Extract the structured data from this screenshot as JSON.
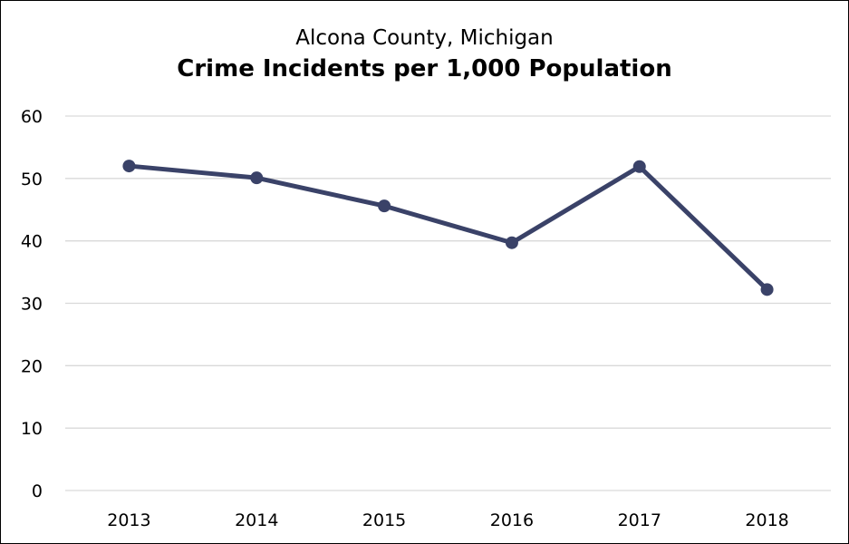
{
  "chart_data": {
    "type": "line",
    "subtitle": "Alcona County, Michigan",
    "title": "Crime Incidents per 1,000 Population",
    "categories": [
      "2013",
      "2014",
      "2015",
      "2016",
      "2017",
      "2018"
    ],
    "series": [
      {
        "values": [
          52.0,
          50.1,
          45.6,
          39.7,
          51.9,
          32.2
        ],
        "color": "#3a4268"
      }
    ],
    "ylim": [
      0,
      60
    ],
    "yticks": [
      0,
      10,
      20,
      30,
      40,
      50,
      60
    ],
    "grid": true,
    "gridColor": "#d9d9d9",
    "legend": "none"
  }
}
